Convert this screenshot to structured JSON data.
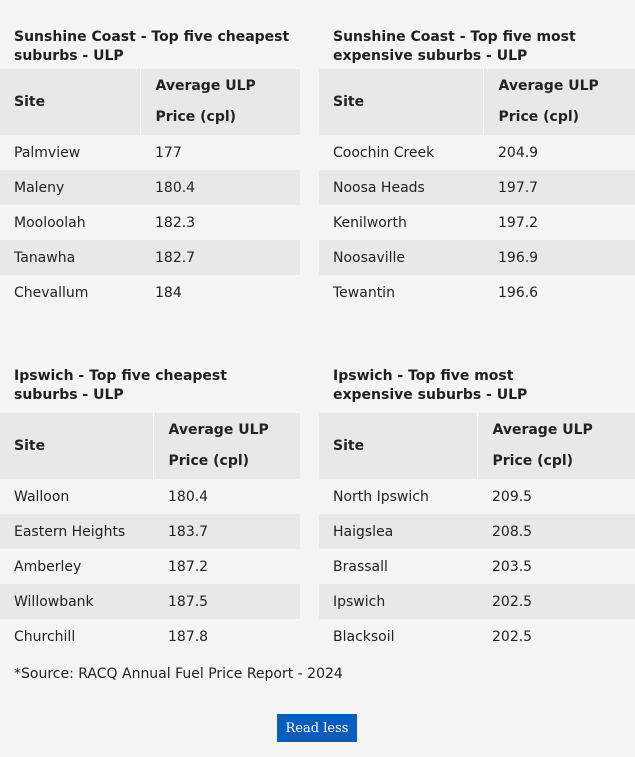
{
  "tables": [
    {
      "title": "Sunshine Coast - Top five cheapest suburbs - ULP",
      "header": {
        "site": "Site",
        "price_line1": "Average ULP",
        "price_line2": "Price (cpl)"
      },
      "rows": [
        {
          "site": "Palmview",
          "price": "177"
        },
        {
          "site": "Maleny",
          "price": "180.4"
        },
        {
          "site": "Mooloolah",
          "price": "182.3"
        },
        {
          "site": "Tanawha",
          "price": "182.7"
        },
        {
          "site": "Chevallum",
          "price": "184"
        }
      ]
    },
    {
      "title": "Sunshine Coast - Top five most expensive suburbs - ULP",
      "header": {
        "site": "Site",
        "price_line1": "Average ULP",
        "price_line2": "Price (cpl)"
      },
      "rows": [
        {
          "site": "Coochin Creek",
          "price": "204.9"
        },
        {
          "site": "Noosa Heads",
          "price": "197.7"
        },
        {
          "site": "Kenilworth",
          "price": "197.2"
        },
        {
          "site": "Noosaville",
          "price": "196.9"
        },
        {
          "site": "Tewantin",
          "price": "196.6"
        }
      ]
    },
    {
      "title": "Ipswich - Top five cheapest suburbs - ULP",
      "header": {
        "site": "Site",
        "price_line1": "Average ULP",
        "price_line2": "Price (cpl)"
      },
      "rows": [
        {
          "site": "Walloon",
          "price": "180.4"
        },
        {
          "site": "Eastern Heights",
          "price": "183.7"
        },
        {
          "site": "Amberley",
          "price": "187.2"
        },
        {
          "site": "Willowbank",
          "price": "187.5"
        },
        {
          "site": "Churchill",
          "price": "187.8"
        }
      ]
    },
    {
      "title": "Ipswich - Top five most expensive suburbs - ULP",
      "header": {
        "site": "Site",
        "price_line1": "Average ULP",
        "price_line2": "Price (cpl)"
      },
      "rows": [
        {
          "site": "North Ipswich",
          "price": "209.5"
        },
        {
          "site": "Haigslea",
          "price": "208.5"
        },
        {
          "site": "Brassall",
          "price": "203.5"
        },
        {
          "site": "Ipswich",
          "price": "202.5"
        },
        {
          "site": "Blacksoil",
          "price": "202.5"
        }
      ]
    }
  ],
  "source_note": "*Source: RACQ Annual Fuel Price Report - 2024",
  "read_less_label": "Read less"
}
